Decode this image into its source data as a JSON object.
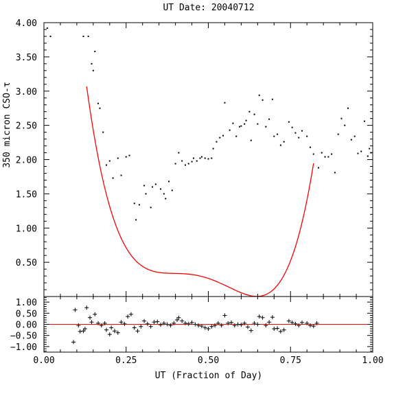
{
  "chart_data": [
    {
      "type": "scatter",
      "title": "UT Date: 20040712",
      "ylabel": "350 micron CSO-τ",
      "xlim": [
        0,
        1
      ],
      "ylim": [
        0,
        4
      ],
      "yticks": [
        "0.50",
        "1.00",
        "1.50",
        "2.00",
        "2.50",
        "3.00",
        "3.50",
        "4.00"
      ],
      "grid": false,
      "series": [
        {
          "marker": "dot",
          "color": "#000000",
          "points": [
            [
              0.01,
              3.92
            ],
            [
              0.02,
              3.8
            ],
            [
              0.12,
              3.8
            ],
            [
              0.135,
              3.8
            ],
            [
              0.145,
              3.4
            ],
            [
              0.15,
              3.3
            ],
            [
              0.155,
              3.58
            ],
            [
              0.165,
              2.82
            ],
            [
              0.17,
              2.75
            ],
            [
              0.18,
              2.4
            ],
            [
              0.19,
              1.92
            ],
            [
              0.2,
              1.98
            ],
            [
              0.21,
              1.73
            ],
            [
              0.225,
              2.02
            ],
            [
              0.235,
              1.77
            ],
            [
              0.25,
              2.04
            ],
            [
              0.26,
              2.06
            ],
            [
              0.275,
              1.36
            ],
            [
              0.28,
              1.12
            ],
            [
              0.29,
              1.34
            ],
            [
              0.305,
              1.62
            ],
            [
              0.31,
              1.5
            ],
            [
              0.325,
              1.3
            ],
            [
              0.33,
              1.6
            ],
            [
              0.34,
              1.64
            ],
            [
              0.355,
              1.57
            ],
            [
              0.365,
              1.5
            ],
            [
              0.37,
              1.43
            ],
            [
              0.38,
              1.68
            ],
            [
              0.39,
              1.55
            ],
            [
              0.4,
              1.94
            ],
            [
              0.41,
              2.1
            ],
            [
              0.42,
              1.98
            ],
            [
              0.43,
              1.92
            ],
            [
              0.44,
              1.94
            ],
            [
              0.45,
              1.97
            ],
            [
              0.455,
              2.02
            ],
            [
              0.465,
              1.98
            ],
            [
              0.475,
              2.02
            ],
            [
              0.48,
              2.04
            ],
            [
              0.49,
              2.02
            ],
            [
              0.5,
              2.01
            ],
            [
              0.51,
              2.02
            ],
            [
              0.515,
              2.16
            ],
            [
              0.525,
              2.26
            ],
            [
              0.535,
              2.32
            ],
            [
              0.545,
              2.35
            ],
            [
              0.55,
              2.83
            ],
            [
              0.565,
              2.43
            ],
            [
              0.575,
              2.53
            ],
            [
              0.585,
              2.34
            ],
            [
              0.595,
              2.48
            ],
            [
              0.6,
              2.49
            ],
            [
              0.61,
              2.52
            ],
            [
              0.615,
              2.57
            ],
            [
              0.625,
              2.7
            ],
            [
              0.63,
              2.28
            ],
            [
              0.64,
              2.66
            ],
            [
              0.65,
              2.52
            ],
            [
              0.655,
              2.94
            ],
            [
              0.665,
              2.87
            ],
            [
              0.675,
              2.48
            ],
            [
              0.685,
              2.59
            ],
            [
              0.695,
              2.88
            ],
            [
              0.7,
              2.34
            ],
            [
              0.71,
              2.37
            ],
            [
              0.72,
              2.21
            ],
            [
              0.73,
              2.26
            ],
            [
              0.745,
              2.55
            ],
            [
              0.755,
              2.47
            ],
            [
              0.765,
              2.39
            ],
            [
              0.775,
              2.32
            ],
            [
              0.785,
              2.42
            ],
            [
              0.8,
              2.34
            ],
            [
              0.81,
              2.18
            ],
            [
              0.82,
              2.08
            ],
            [
              0.835,
              1.88
            ],
            [
              0.845,
              2.1
            ],
            [
              0.855,
              2.04
            ],
            [
              0.865,
              2.04
            ],
            [
              0.875,
              2.08
            ],
            [
              0.885,
              1.81
            ],
            [
              0.895,
              2.37
            ],
            [
              0.905,
              2.6
            ],
            [
              0.915,
              2.5
            ],
            [
              0.925,
              2.75
            ],
            [
              0.935,
              2.29
            ],
            [
              0.945,
              2.34
            ],
            [
              0.955,
              2.09
            ],
            [
              0.965,
              2.12
            ],
            [
              0.975,
              2.56
            ],
            [
              0.985,
              2.05
            ],
            [
              0.99,
              2.16
            ],
            [
              0.995,
              2.1
            ]
          ]
        },
        {
          "type": "line",
          "color": "#ff0000",
          "fit_range": [
            0.13,
            0.82
          ],
          "polynomial": [
            11.2036,
            -96.8598,
            319.0098,
            -457.3316,
            238.4818
          ]
        }
      ]
    },
    {
      "type": "scatter",
      "xlabel": "UT (Fraction of Day)",
      "xlim": [
        0,
        1
      ],
      "ylim": [
        -1.25,
        1.25
      ],
      "xticks": [
        "0.00",
        "0.25",
        "0.50",
        "0.75",
        "1.00"
      ],
      "yticks": [
        "−1.00",
        "−0.50",
        "0.00",
        "0.50",
        "1.00"
      ],
      "zero_line_color": "#ff0000",
      "series": [
        {
          "marker": "plus",
          "color": "#000000",
          "points": [
            [
              0.09,
              -0.8
            ],
            [
              0.095,
              0.65
            ],
            [
              0.105,
              -0.05
            ],
            [
              0.11,
              -0.32
            ],
            [
              0.12,
              -0.3
            ],
            [
              0.125,
              -0.2
            ],
            [
              0.13,
              0.75
            ],
            [
              0.14,
              0.3
            ],
            [
              0.145,
              0.1
            ],
            [
              0.155,
              0.45
            ],
            [
              0.165,
              0.05
            ],
            [
              0.175,
              -0.05
            ],
            [
              0.185,
              0.05
            ],
            [
              0.19,
              -0.25
            ],
            [
              0.2,
              -0.45
            ],
            [
              0.205,
              -0.15
            ],
            [
              0.215,
              -0.3
            ],
            [
              0.225,
              -0.38
            ],
            [
              0.235,
              0.1
            ],
            [
              0.245,
              0.02
            ],
            [
              0.255,
              0.35
            ],
            [
              0.265,
              0.45
            ],
            [
              0.275,
              -0.15
            ],
            [
              0.285,
              -0.3
            ],
            [
              0.295,
              -0.1
            ],
            [
              0.305,
              0.15
            ],
            [
              0.315,
              0.02
            ],
            [
              0.325,
              -0.1
            ],
            [
              0.335,
              0.1
            ],
            [
              0.345,
              0.12
            ],
            [
              0.355,
              -0.02
            ],
            [
              0.365,
              0.05
            ],
            [
              0.375,
              0.0
            ],
            [
              0.385,
              -0.05
            ],
            [
              0.395,
              0.05
            ],
            [
              0.405,
              0.2
            ],
            [
              0.41,
              0.3
            ],
            [
              0.42,
              0.15
            ],
            [
              0.43,
              0.05
            ],
            [
              0.44,
              0.02
            ],
            [
              0.45,
              0.08
            ],
            [
              0.46,
              0.0
            ],
            [
              0.47,
              -0.05
            ],
            [
              0.48,
              -0.08
            ],
            [
              0.49,
              -0.15
            ],
            [
              0.5,
              -0.2
            ],
            [
              0.51,
              -0.1
            ],
            [
              0.52,
              -0.05
            ],
            [
              0.53,
              0.05
            ],
            [
              0.54,
              -0.05
            ],
            [
              0.55,
              0.4
            ],
            [
              0.56,
              0.05
            ],
            [
              0.57,
              0.08
            ],
            [
              0.58,
              -0.05
            ],
            [
              0.59,
              0.0
            ],
            [
              0.6,
              -0.02
            ],
            [
              0.61,
              0.05
            ],
            [
              0.62,
              -0.12
            ],
            [
              0.63,
              -0.28
            ],
            [
              0.64,
              0.05
            ],
            [
              0.65,
              0.0
            ],
            [
              0.655,
              0.35
            ],
            [
              0.665,
              0.3
            ],
            [
              0.675,
              -0.05
            ],
            [
              0.685,
              0.1
            ],
            [
              0.695,
              0.32
            ],
            [
              0.7,
              -0.2
            ],
            [
              0.71,
              -0.18
            ],
            [
              0.72,
              -0.32
            ],
            [
              0.73,
              -0.25
            ],
            [
              0.745,
              0.15
            ],
            [
              0.755,
              0.08
            ],
            [
              0.765,
              0.02
            ],
            [
              0.775,
              -0.05
            ],
            [
              0.785,
              0.08
            ],
            [
              0.8,
              0.05
            ],
            [
              0.81,
              -0.05
            ],
            [
              0.82,
              -0.08
            ],
            [
              0.83,
              0.05
            ]
          ]
        }
      ]
    }
  ]
}
